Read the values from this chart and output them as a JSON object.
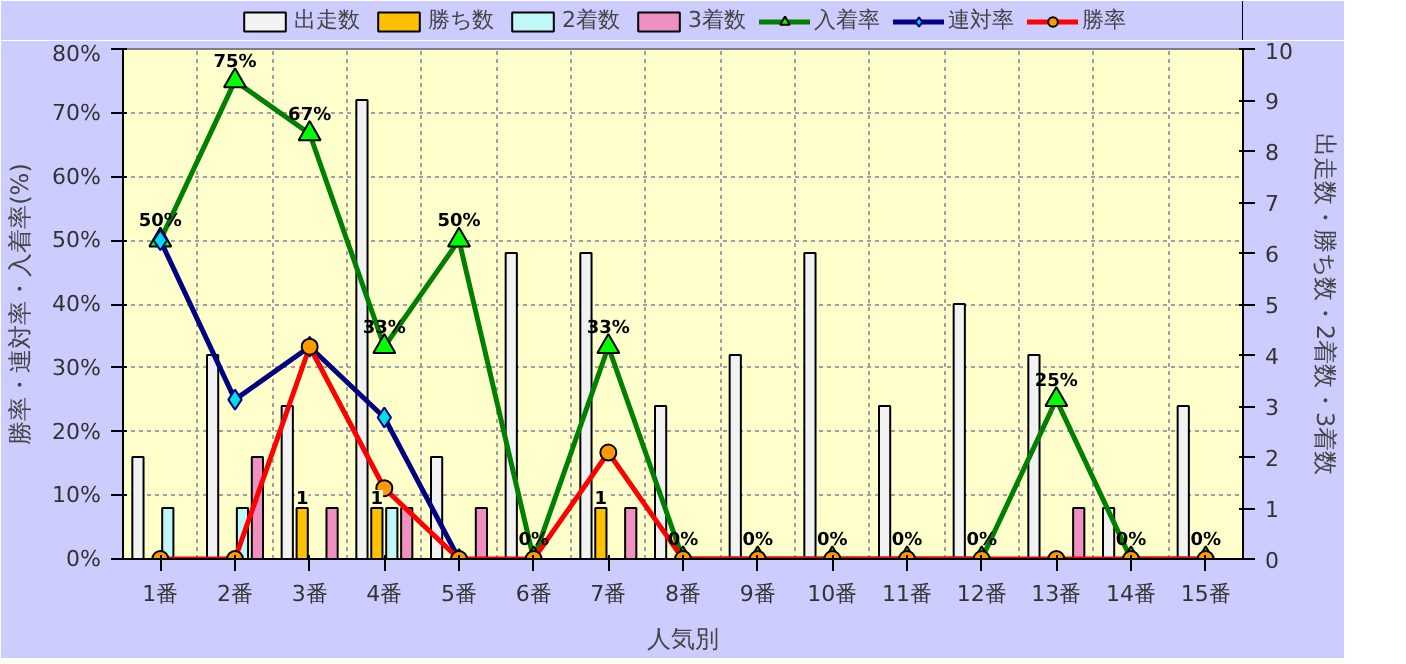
{
  "chart_data": {
    "type": "bar",
    "xlabel": "人気別",
    "ylabel": "勝率・連対率・入着率(%)",
    "y2label": "出走数・勝ち数・2着数・3着数",
    "categories": [
      "1番",
      "2番",
      "3番",
      "4番",
      "5番",
      "6番",
      "7番",
      "8番",
      "9番",
      "10番",
      "11番",
      "12番",
      "13番",
      "14番",
      "15番"
    ],
    "series": [
      {
        "name": "出走数",
        "axis": "y2",
        "color": "#f2f2f2",
        "values": [
          2,
          4,
          3,
          9,
          2,
          6,
          6,
          3,
          4,
          6,
          3,
          5,
          4,
          1,
          3
        ]
      },
      {
        "name": "勝ち数",
        "axis": "y2",
        "color": "#ffc000",
        "values": [
          0,
          0,
          1,
          1,
          0,
          0,
          1,
          0,
          0,
          0,
          0,
          0,
          0,
          0,
          0
        ],
        "value_labels": [
          null,
          null,
          "1",
          "1",
          null,
          null,
          "1",
          null,
          null,
          null,
          null,
          null,
          null,
          null,
          null
        ]
      },
      {
        "name": "2着数",
        "axis": "y2",
        "color": "#c0f8f8",
        "values": [
          1,
          1,
          0,
          1,
          0,
          0,
          0,
          0,
          0,
          0,
          0,
          0,
          0,
          0,
          0
        ]
      },
      {
        "name": "3着数",
        "axis": "y2",
        "color": "#f090c0",
        "values": [
          0,
          2,
          1,
          1,
          1,
          0,
          1,
          0,
          0,
          0,
          0,
          0,
          1,
          0,
          0
        ]
      },
      {
        "name": "入着率",
        "type": "line",
        "marker": "triangle",
        "color": "#008000",
        "values": [
          50,
          75,
          66.7,
          33.3,
          50,
          0,
          33.3,
          0,
          0,
          0,
          0,
          0,
          25,
          0,
          0
        ],
        "value_labels": [
          "50%",
          "75%",
          "67%",
          "33%",
          "50%",
          "0%",
          "33%",
          "0%",
          "0%",
          "0%",
          "0%",
          "0%",
          "25%",
          "0%",
          "0%"
        ]
      },
      {
        "name": "連対率",
        "type": "line",
        "marker": "diamond",
        "color": "#000080",
        "values": [
          50,
          25,
          33.3,
          22.2,
          0,
          null,
          null,
          null,
          null,
          null,
          null,
          null,
          null,
          null,
          null
        ]
      },
      {
        "name": "勝率",
        "type": "line",
        "marker": "circle",
        "color": "#ff0000",
        "values": [
          0,
          0,
          33.3,
          11.1,
          0,
          0,
          16.7,
          0,
          0,
          0,
          0,
          0,
          0,
          0,
          0
        ]
      }
    ],
    "ylim": [
      0,
      80
    ],
    "yticks": [
      {
        "value": 0,
        "label": "0%"
      },
      {
        "value": 10,
        "label": "10%"
      },
      {
        "value": 20,
        "label": "20%"
      },
      {
        "value": 30,
        "label": "30%"
      },
      {
        "value": 40,
        "label": "40%"
      },
      {
        "value": 50,
        "label": "50%"
      },
      {
        "value": 60,
        "label": "60%"
      },
      {
        "value": 70,
        "label": "70%"
      },
      {
        "value": 80,
        "label": "80%"
      }
    ],
    "y2lim": [
      0,
      10
    ],
    "y2ticks": [
      0,
      1,
      2,
      3,
      4,
      5,
      6,
      7,
      8,
      9,
      10
    ],
    "grid": true,
    "legend": "top"
  }
}
